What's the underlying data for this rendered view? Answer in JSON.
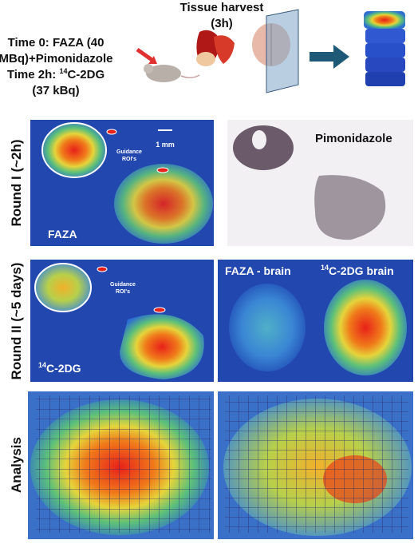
{
  "header": {
    "protocol": {
      "line1": "Time 0: FAZA (40",
      "line2": "MBq)+Pimonidazole",
      "line3": {
        "prefix": "Time 2h: ",
        "sup": "14",
        "rest": "C-2DG"
      },
      "line4": "(37 kBq)"
    },
    "harvest": {
      "line1": "Tissue harvest",
      "line2": "(3h)"
    }
  },
  "rows": [
    {
      "label": "Round I (~2h)"
    },
    {
      "label": "Round II (~5 days)"
    },
    {
      "label": "Analysis"
    }
  ],
  "panels": {
    "round1_left": {
      "label": "FAZA",
      "scale": "1 mm",
      "roi": {
        "line1": "Guidance",
        "line2": "ROI's"
      }
    },
    "round1_right": {
      "label": "Pimonidazole"
    },
    "round2_left": {
      "label": {
        "sup": "14",
        "rest": "C-2DG"
      },
      "roi": {
        "line1": "Guidance",
        "line2": "ROI's"
      }
    },
    "round2_brain_faza": {
      "label": "FAZA - brain"
    },
    "round2_brain_2dg": {
      "label": {
        "sup": "14",
        "rest": "C-2DG brain"
      }
    }
  }
}
